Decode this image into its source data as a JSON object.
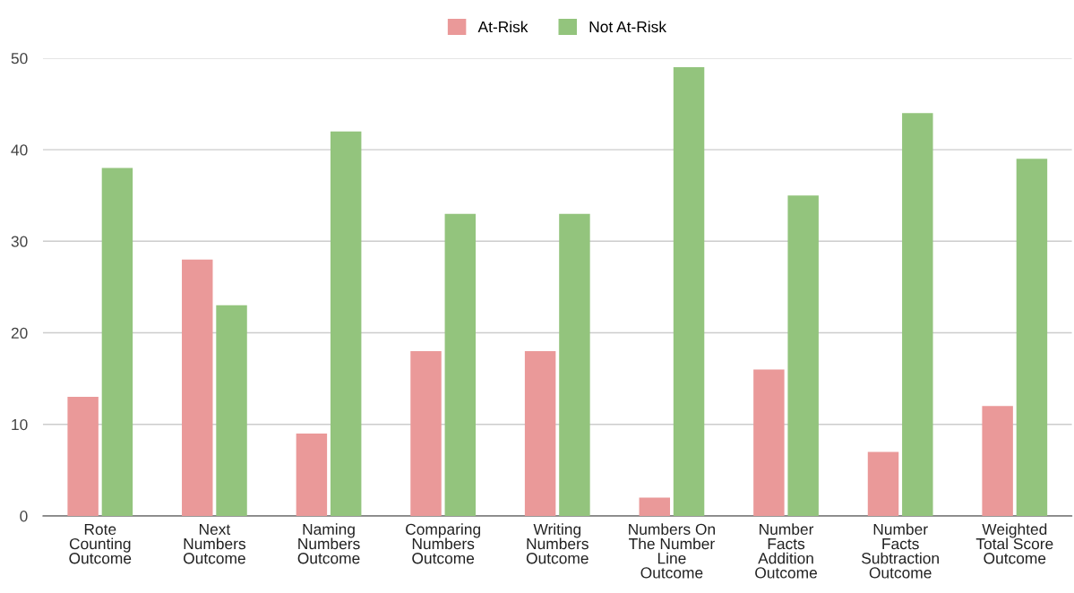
{
  "chart_data": {
    "type": "bar",
    "categories": [
      "Rote Counting Outcome",
      "Next Numbers Outcome",
      "Naming Numbers Outcome",
      "Comparing Numbers Outcome",
      "Writing Numbers Outcome",
      "Numbers On The Number Line Outcome",
      "Number Facts Addition Outcome",
      "Number Facts Subtraction Outcome",
      "Weighted Total Score Outcome"
    ],
    "series": [
      {
        "name": "At-Risk",
        "color": "#ea9999",
        "values": [
          13,
          28,
          9,
          18,
          18,
          2,
          16,
          7,
          12
        ]
      },
      {
        "name": "Not At-Risk",
        "color": "#93c47d",
        "values": [
          38,
          23,
          42,
          33,
          33,
          49,
          35,
          44,
          39
        ]
      }
    ],
    "ylim": [
      0,
      50
    ],
    "yticks": [
      0,
      10,
      20,
      30,
      40,
      50
    ],
    "grid": "y",
    "legend": "top"
  }
}
